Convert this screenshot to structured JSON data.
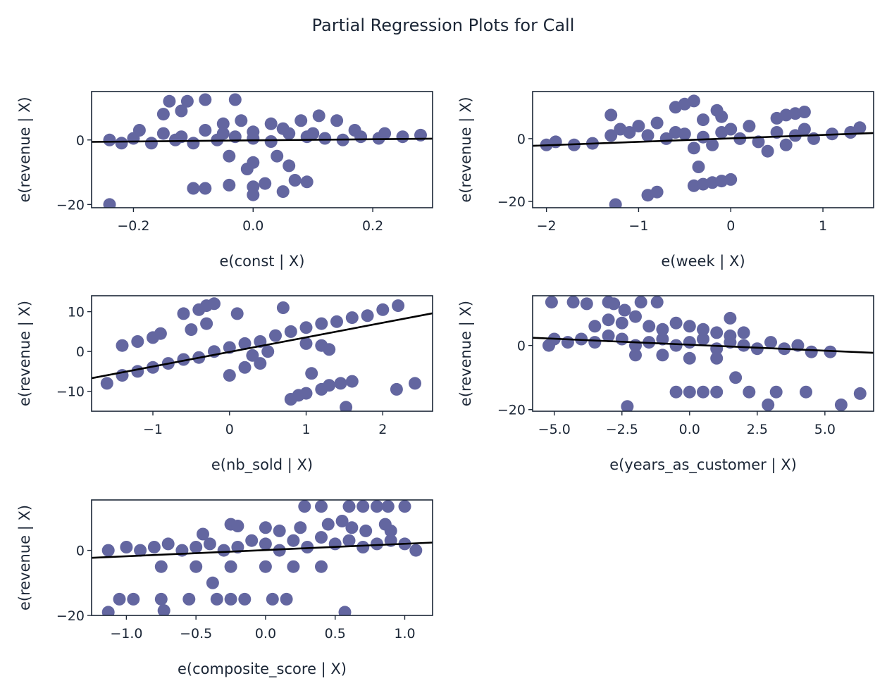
{
  "figure": {
    "title": "Partial Regression Plots for Call",
    "marker_color": "#6366a0",
    "line_color": "#000000",
    "text_color": "#1b2636"
  },
  "chart_data": [
    {
      "type": "scatter",
      "title": "",
      "xlabel": "e(const | X)",
      "ylabel": "e(revenue | X)",
      "xlim": [
        -0.27,
        0.3
      ],
      "ylim": [
        -21,
        15
      ],
      "xticks": [
        -0.2,
        0.0,
        0.2
      ],
      "xtick_labels": [
        "−0.2",
        "0.0",
        "0.2"
      ],
      "yticks": [
        -20,
        0
      ],
      "ytick_labels": [
        "−20",
        "0"
      ],
      "grid": false,
      "fit_line": {
        "x": [
          -0.27,
          0.3
        ],
        "y": [
          -0.6,
          0.4
        ]
      },
      "points": [
        [
          -0.24,
          0
        ],
        [
          -0.2,
          0.5
        ],
        [
          -0.17,
          -1
        ],
        [
          -0.15,
          2
        ],
        [
          -0.12,
          1
        ],
        [
          -0.1,
          -1
        ],
        [
          -0.08,
          3
        ],
        [
          -0.05,
          2
        ],
        [
          -0.03,
          1
        ],
        [
          0.0,
          0.5
        ],
        [
          0.03,
          -0.5
        ],
        [
          0.06,
          2
        ],
        [
          0.09,
          1
        ],
        [
          0.12,
          0.5
        ],
        [
          0.15,
          0
        ],
        [
          0.18,
          1
        ],
        [
          0.21,
          0.5
        ],
        [
          0.25,
          1
        ],
        [
          0.28,
          1.5
        ],
        [
          -0.22,
          -1
        ],
        [
          -0.13,
          0
        ],
        [
          -0.06,
          0
        ],
        [
          0.0,
          2.5
        ],
        [
          0.05,
          3.5
        ],
        [
          0.1,
          2
        ],
        [
          -0.14,
          12
        ],
        [
          -0.11,
          12
        ],
        [
          -0.08,
          12.5
        ],
        [
          -0.03,
          12.5
        ],
        [
          -0.15,
          8
        ],
        [
          -0.12,
          9
        ],
        [
          0.08,
          6
        ],
        [
          0.11,
          7.5
        ],
        [
          0.14,
          6
        ],
        [
          -0.1,
          -15
        ],
        [
          -0.08,
          -15
        ],
        [
          -0.04,
          -14
        ],
        [
          0.0,
          -14.5
        ],
        [
          0.02,
          -13.5
        ],
        [
          0.07,
          -12.5
        ],
        [
          0.09,
          -13
        ],
        [
          -0.01,
          -9
        ],
        [
          -0.04,
          -5
        ],
        [
          0.0,
          -7
        ],
        [
          0.04,
          -5
        ],
        [
          0.06,
          -8
        ],
        [
          -0.24,
          -20
        ],
        [
          0.0,
          -17
        ],
        [
          0.05,
          -16
        ],
        [
          -0.05,
          5
        ],
        [
          -0.02,
          6
        ],
        [
          0.03,
          5
        ],
        [
          -0.19,
          3
        ],
        [
          0.17,
          3
        ],
        [
          0.22,
          2
        ]
      ]
    },
    {
      "type": "scatter",
      "title": "",
      "xlabel": "e(week | X)",
      "ylabel": "e(revenue | X)",
      "xlim": [
        -2.15,
        1.55
      ],
      "ylim": [
        -22,
        15
      ],
      "xticks": [
        -2,
        -1,
        0,
        1
      ],
      "xtick_labels": [
        "−2",
        "−1",
        "0",
        "1"
      ],
      "yticks": [
        -20,
        0
      ],
      "ytick_labels": [
        "−20",
        "0"
      ],
      "grid": false,
      "fit_line": {
        "x": [
          -2.15,
          1.55
        ],
        "y": [
          -2.3,
          1.8
        ]
      },
      "points": [
        [
          -2.0,
          -2
        ],
        [
          -1.9,
          -1
        ],
        [
          -1.7,
          -2
        ],
        [
          -1.5,
          -1.5
        ],
        [
          -1.3,
          1
        ],
        [
          -1.1,
          2
        ],
        [
          -0.9,
          1
        ],
        [
          -0.7,
          0
        ],
        [
          -0.5,
          1.5
        ],
        [
          -0.3,
          0.5
        ],
        [
          -0.1,
          2
        ],
        [
          0.1,
          0
        ],
        [
          0.3,
          -1
        ],
        [
          0.5,
          2
        ],
        [
          0.7,
          1
        ],
        [
          0.9,
          0
        ],
        [
          1.1,
          1.5
        ],
        [
          1.3,
          2
        ],
        [
          1.4,
          3.5
        ],
        [
          -1.2,
          3
        ],
        [
          -1.0,
          4
        ],
        [
          -0.8,
          5
        ],
        [
          -0.6,
          2
        ],
        [
          -0.4,
          -3
        ],
        [
          -0.2,
          -2
        ],
        [
          0.0,
          3
        ],
        [
          0.2,
          4
        ],
        [
          0.4,
          -4
        ],
        [
          0.6,
          -2
        ],
        [
          0.8,
          3
        ],
        [
          -0.6,
          10
        ],
        [
          -0.5,
          11
        ],
        [
          -0.4,
          12
        ],
        [
          -0.3,
          6
        ],
        [
          -0.1,
          7
        ],
        [
          -0.15,
          9
        ],
        [
          0.5,
          6.5
        ],
        [
          0.6,
          7.5
        ],
        [
          0.7,
          8
        ],
        [
          0.8,
          8.5
        ],
        [
          -1.3,
          7.5
        ],
        [
          -0.4,
          -15
        ],
        [
          -0.3,
          -14.5
        ],
        [
          -0.2,
          -14
        ],
        [
          -0.1,
          -13.5
        ],
        [
          0.0,
          -13
        ],
        [
          -0.35,
          -9
        ],
        [
          -0.9,
          -18
        ],
        [
          -0.8,
          -17
        ],
        [
          -1.25,
          -21
        ]
      ]
    },
    {
      "type": "scatter",
      "title": "",
      "xlabel": "e(nb_sold | X)",
      "ylabel": "e(revenue | X)",
      "xlim": [
        -1.8,
        2.65
      ],
      "ylim": [
        -15,
        14
      ],
      "xticks": [
        -1,
        0,
        1,
        2
      ],
      "xtick_labels": [
        "−1",
        "0",
        "1",
        "2"
      ],
      "yticks": [
        -10,
        0,
        10
      ],
      "ytick_labels": [
        "−10",
        "0",
        "10"
      ],
      "grid": false,
      "fit_line": {
        "x": [
          -1.8,
          2.65
        ],
        "y": [
          -6.7,
          9.6
        ]
      },
      "points": [
        [
          -1.6,
          -8
        ],
        [
          -1.4,
          -6
        ],
        [
          -1.2,
          -5
        ],
        [
          -1.0,
          -4
        ],
        [
          -0.8,
          -3
        ],
        [
          -0.6,
          -2
        ],
        [
          -0.4,
          -1.5
        ],
        [
          -0.2,
          0
        ],
        [
          0.0,
          1
        ],
        [
          0.2,
          2
        ],
        [
          0.4,
          2.5
        ],
        [
          0.6,
          4
        ],
        [
          0.8,
          5
        ],
        [
          1.0,
          6
        ],
        [
          1.2,
          7
        ],
        [
          1.4,
          7.5
        ],
        [
          1.6,
          8.5
        ],
        [
          1.8,
          9
        ],
        [
          2.0,
          10.5
        ],
        [
          2.2,
          11.5
        ],
        [
          -1.4,
          1.5
        ],
        [
          -1.2,
          2.5
        ],
        [
          -1.0,
          3.5
        ],
        [
          -0.9,
          4.5
        ],
        [
          -0.6,
          9.5
        ],
        [
          -0.4,
          10.5
        ],
        [
          -0.3,
          11.5
        ],
        [
          -0.2,
          12
        ],
        [
          -0.5,
          5.5
        ],
        [
          -0.3,
          7
        ],
        [
          0.1,
          9.5
        ],
        [
          0.7,
          11
        ],
        [
          0.0,
          -6
        ],
        [
          0.2,
          -4
        ],
        [
          0.4,
          -3
        ],
        [
          0.8,
          -12
        ],
        [
          0.9,
          -11
        ],
        [
          1.0,
          -10.5
        ],
        [
          1.2,
          -9.5
        ],
        [
          1.3,
          -8.5
        ],
        [
          1.45,
          -8
        ],
        [
          1.6,
          -7.5
        ],
        [
          1.07,
          -5.5
        ],
        [
          1.52,
          -14
        ],
        [
          2.18,
          -9.5
        ],
        [
          2.42,
          -8
        ],
        [
          1.0,
          2
        ],
        [
          1.2,
          1.5
        ],
        [
          0.5,
          0
        ],
        [
          0.3,
          -1
        ],
        [
          1.3,
          0.5
        ]
      ]
    },
    {
      "type": "scatter",
      "title": "",
      "xlabel": "e(years_as_customer | X)",
      "ylabel": "e(revenue | X)",
      "xlim": [
        -5.8,
        6.8
      ],
      "ylim": [
        -20.5,
        15.5
      ],
      "xticks": [
        -5.0,
        -2.5,
        0.0,
        2.5,
        5.0
      ],
      "xtick_labels": [
        "−5.0",
        "−2.5",
        "0.0",
        "2.5",
        "5.0"
      ],
      "yticks": [
        -20,
        0
      ],
      "ytick_labels": [
        "−20",
        "0"
      ],
      "grid": false,
      "fit_line": {
        "x": [
          -5.8,
          6.8
        ],
        "y": [
          2.4,
          -2.3
        ]
      },
      "points": [
        [
          -5.2,
          0
        ],
        [
          -5.0,
          2
        ],
        [
          -4.5,
          1
        ],
        [
          -4.0,
          2
        ],
        [
          -3.5,
          1
        ],
        [
          -3.0,
          3
        ],
        [
          -2.5,
          2
        ],
        [
          -2.0,
          0
        ],
        [
          -1.5,
          1
        ],
        [
          -1.0,
          2
        ],
        [
          -0.5,
          0
        ],
        [
          0.0,
          1
        ],
        [
          0.5,
          2
        ],
        [
          1.0,
          -1
        ],
        [
          1.5,
          1
        ],
        [
          2.0,
          0
        ],
        [
          2.5,
          -1
        ],
        [
          3.0,
          1
        ],
        [
          3.5,
          -1
        ],
        [
          4.0,
          0
        ],
        [
          4.5,
          -2
        ],
        [
          5.2,
          -2
        ],
        [
          -3.5,
          6
        ],
        [
          -3.0,
          8
        ],
        [
          -2.5,
          7
        ],
        [
          -2.0,
          9
        ],
        [
          -1.5,
          6
        ],
        [
          -1.0,
          5
        ],
        [
          -0.5,
          7
        ],
        [
          0.0,
          6
        ],
        [
          0.5,
          5
        ],
        [
          1.0,
          4
        ],
        [
          1.5,
          3
        ],
        [
          2.0,
          4
        ],
        [
          -5.1,
          13.5
        ],
        [
          -4.3,
          13.5
        ],
        [
          -3.8,
          13
        ],
        [
          -3.0,
          13.5
        ],
        [
          -2.8,
          13
        ],
        [
          -2.4,
          11
        ],
        [
          -1.8,
          13.5
        ],
        [
          -1.2,
          13.5
        ],
        [
          -2.0,
          -3
        ],
        [
          -1.0,
          -3
        ],
        [
          0.0,
          -4
        ],
        [
          1.0,
          -4
        ],
        [
          1.7,
          -10
        ],
        [
          1.5,
          8.5
        ],
        [
          -0.5,
          -14.5
        ],
        [
          0.0,
          -14.5
        ],
        [
          0.5,
          -14.5
        ],
        [
          1.0,
          -14.5
        ],
        [
          2.2,
          -14.5
        ],
        [
          3.2,
          -14.5
        ],
        [
          4.3,
          -14.5
        ],
        [
          6.3,
          -15
        ],
        [
          -2.3,
          -19
        ],
        [
          2.9,
          -18.5
        ],
        [
          5.6,
          -18.5
        ]
      ]
    },
    {
      "type": "scatter",
      "title": "",
      "xlabel": "e(composite_score | X)",
      "ylabel": "e(revenue | X)",
      "xlim": [
        -1.25,
        1.2
      ],
      "ylim": [
        -20,
        15.5
      ],
      "xticks": [
        -1.0,
        -0.5,
        0.0,
        0.5,
        1.0
      ],
      "xtick_labels": [
        "−1.0",
        "−0.5",
        "0.0",
        "0.5",
        "1.0"
      ],
      "yticks": [
        -20,
        0
      ],
      "ytick_labels": [
        "−20",
        "0"
      ],
      "grid": false,
      "fit_line": {
        "x": [
          -1.25,
          1.2
        ],
        "y": [
          -2.3,
          2.4
        ]
      },
      "points": [
        [
          -1.13,
          0
        ],
        [
          -1.0,
          1
        ],
        [
          -0.9,
          0
        ],
        [
          -0.8,
          1
        ],
        [
          -0.7,
          2
        ],
        [
          -0.6,
          0
        ],
        [
          -0.5,
          1
        ],
        [
          -0.4,
          2
        ],
        [
          -0.3,
          0
        ],
        [
          -0.2,
          1
        ],
        [
          -0.1,
          3
        ],
        [
          0.0,
          2
        ],
        [
          0.1,
          0
        ],
        [
          0.2,
          3
        ],
        [
          0.3,
          1
        ],
        [
          0.4,
          4
        ],
        [
          0.5,
          2
        ],
        [
          0.6,
          3
        ],
        [
          0.7,
          1
        ],
        [
          0.8,
          2
        ],
        [
          0.9,
          3
        ],
        [
          1.0,
          2
        ],
        [
          1.08,
          0
        ],
        [
          -0.45,
          5
        ],
        [
          -0.25,
          8
        ],
        [
          -0.2,
          7.5
        ],
        [
          0.0,
          7
        ],
        [
          0.1,
          6
        ],
        [
          0.25,
          7
        ],
        [
          0.45,
          8
        ],
        [
          0.55,
          9
        ],
        [
          0.62,
          7
        ],
        [
          0.72,
          6
        ],
        [
          0.86,
          8
        ],
        [
          0.9,
          6
        ],
        [
          -0.75,
          -5
        ],
        [
          -0.5,
          -5
        ],
        [
          -0.25,
          -5
        ],
        [
          0.0,
          -5
        ],
        [
          0.2,
          -5
        ],
        [
          0.4,
          -5
        ],
        [
          -0.38,
          -10
        ],
        [
          0.28,
          13.5
        ],
        [
          0.4,
          13.5
        ],
        [
          0.6,
          13.5
        ],
        [
          0.7,
          13.5
        ],
        [
          0.8,
          13.5
        ],
        [
          0.88,
          13.5
        ],
        [
          1.0,
          13.5
        ],
        [
          -1.05,
          -15
        ],
        [
          -0.95,
          -15
        ],
        [
          -0.75,
          -15
        ],
        [
          -0.55,
          -15
        ],
        [
          -0.35,
          -15
        ],
        [
          -0.25,
          -15
        ],
        [
          -0.15,
          -15
        ],
        [
          0.05,
          -15
        ],
        [
          0.15,
          -15
        ],
        [
          -1.13,
          -19
        ],
        [
          -0.73,
          -18.5
        ],
        [
          0.57,
          -19
        ]
      ]
    }
  ]
}
